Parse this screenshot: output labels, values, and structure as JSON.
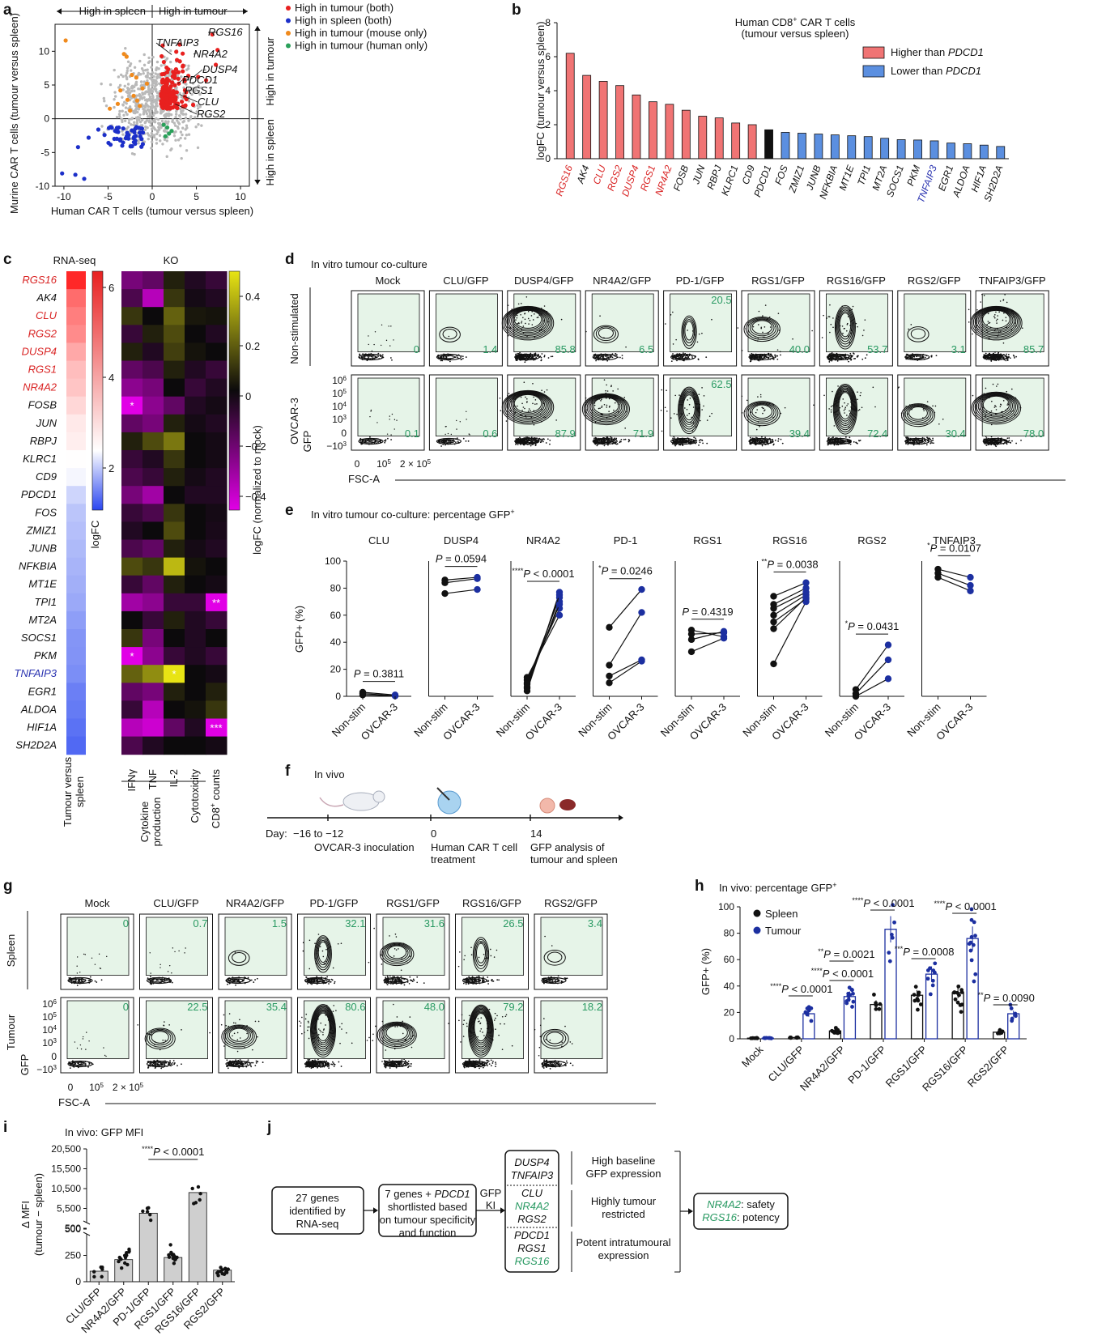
{
  "panel_letters": [
    "a",
    "b",
    "c",
    "d",
    "e",
    "f",
    "g",
    "h",
    "i",
    "j"
  ],
  "chart_data": [
    {
      "panel": "a",
      "type": "scatter",
      "xlabel": "Human CAR T cells (tumour versus spleen)",
      "ylabel": "Murine CAR T cells (tumour versus spleen)",
      "xlim": [
        -11,
        11
      ],
      "ylim": [
        -10,
        14
      ],
      "xticks": [
        "-10",
        "-5",
        "0",
        "5",
        "10"
      ],
      "yticks": [
        "-10",
        "-5",
        "0",
        "5",
        "10"
      ],
      "top_left": "High in spleen",
      "top_right": "High in tumour",
      "right_top": "High in tumour",
      "right_bottom": "High in spleen",
      "legend": [
        {
          "label": "High in tumour (both)",
          "color": "#e8201f"
        },
        {
          "label": "High in spleen (both)",
          "color": "#1c2fc9"
        },
        {
          "label": "High in tumour (mouse only)",
          "color": "#f08a1c"
        },
        {
          "label": "High in tumour (human only)",
          "color": "#2aa05a"
        }
      ],
      "annotations": [
        "RGS16",
        "TNFAIP3",
        "NR4A2",
        "DUSP4",
        "PDCD1",
        "RGS1",
        "CLU",
        "RGS2"
      ]
    },
    {
      "panel": "b",
      "type": "bar",
      "title": "Human CD8+ CAR T cells",
      "title_parts": {
        "pre": "Human CD8",
        "sup": "+",
        "post": " CAR T cells"
      },
      "subtitle": "(tumour versus spleen)",
      "ylabel": "logFC (tumour versus spleen)",
      "ylim": [
        0,
        8
      ],
      "yticks": [
        "0",
        "2",
        "4",
        "6",
        "8"
      ],
      "legend": [
        {
          "label_pre": "Higher than ",
          "label_italic": "PDCD1",
          "color": "#f07474"
        },
        {
          "label_pre": "Lower than ",
          "label_italic": "PDCD1",
          "color": "#5b8fe0"
        }
      ],
      "categories": [
        "RGS16",
        "AK4",
        "CLU",
        "RGS2",
        "DUSP4",
        "RGS1",
        "NR4A2",
        "FOSB",
        "JUN",
        "RBPJ",
        "KLRC1",
        "CD9",
        "PDCD1",
        "FOS",
        "ZMIZ1",
        "JUNB",
        "NFKBIA",
        "MT1E",
        "TPI1",
        "MT2A",
        "SOCS1",
        "PKM",
        "TNFAIP3",
        "EGR1",
        "ALDOA",
        "HIF1A",
        "SH2D2A"
      ],
      "values": [
        6.2,
        4.9,
        4.55,
        4.3,
        3.75,
        3.35,
        3.2,
        2.85,
        2.5,
        2.4,
        2.1,
        2.0,
        1.7,
        1.55,
        1.5,
        1.45,
        1.4,
        1.35,
        1.3,
        1.2,
        1.12,
        1.1,
        1.05,
        0.92,
        0.88,
        0.8,
        0.72
      ],
      "label_colors": [
        "red",
        "black",
        "red",
        "red",
        "red",
        "red",
        "red",
        "black",
        "black",
        "black",
        "black",
        "black",
        "black",
        "black",
        "black",
        "black",
        "black",
        "black",
        "black",
        "black",
        "black",
        "black",
        "blue",
        "black",
        "black",
        "black",
        "black"
      ]
    },
    {
      "panel": "c",
      "type": "heatmap",
      "left_title": "RNA-seq",
      "right_title": "KO",
      "genes": [
        "RGS16",
        "AK4",
        "CLU",
        "RGS2",
        "DUSP4",
        "RGS1",
        "NR4A2",
        "FOSB",
        "JUN",
        "RBPJ",
        "KLRC1",
        "CD9",
        "PDCD1",
        "FOS",
        "ZMIZ1",
        "JUNB",
        "NFKBIA",
        "MT1E",
        "TPI1",
        "MT2A",
        "SOCS1",
        "PKM",
        "TNFAIP3",
        "EGR1",
        "ALDOA",
        "HIF1A",
        "SH2D2A"
      ],
      "gene_colors": [
        "red",
        "black",
        "red",
        "red",
        "red",
        "red",
        "red",
        "black",
        "black",
        "black",
        "black",
        "black",
        "black",
        "black",
        "black",
        "black",
        "black",
        "black",
        "black",
        "black",
        "black",
        "black",
        "blue",
        "black",
        "black",
        "black",
        "black"
      ],
      "logfc": [
        6.2,
        4.9,
        4.55,
        4.3,
        3.75,
        3.35,
        3.2,
        2.85,
        2.5,
        2.4,
        2.1,
        2.0,
        1.7,
        1.55,
        1.5,
        1.45,
        1.4,
        1.35,
        1.3,
        1.2,
        1.12,
        1.1,
        1.05,
        0.92,
        0.88,
        0.8,
        0.72
      ],
      "logfc_ticks": [
        "6",
        "4",
        "2"
      ],
      "logfc_label": "logFC",
      "ko_ticks": [
        "0.4",
        "0.2",
        "0",
        "−0.2",
        "−0.4"
      ],
      "ko_label": "logFC (normalized to mock)",
      "ko_columns": [
        "IFNγ",
        "TNF",
        "IL-2",
        "Cytotoxicity",
        "CD8+ counts"
      ],
      "ko_column_parts": [
        {
          "pre": "IFNγ",
          "sup": ""
        },
        {
          "pre": "TNF",
          "sup": ""
        },
        {
          "pre": "IL-2",
          "sup": ""
        },
        {
          "pre": "Cytotoxicity",
          "sup": ""
        },
        {
          "pre": "CD8",
          "sup": "+",
          "post": " counts"
        }
      ],
      "column_groups": [
        "Cytokine production"
      ],
      "group_lines": [
        "Cytokine",
        "production"
      ],
      "x_left_label": "Tumour versus spleen",
      "x_left_lines": [
        "Tumour versus",
        "spleen"
      ],
      "ko_values": [
        [
          -0.25,
          -0.2,
          0.05,
          -0.05,
          -0.1
        ],
        [
          -0.15,
          -0.4,
          0.1,
          -0.02,
          -0.05
        ],
        [
          0.1,
          0.0,
          0.2,
          0.03,
          0.02
        ],
        [
          -0.1,
          0.05,
          0.15,
          0.0,
          -0.05
        ],
        [
          0.05,
          -0.05,
          0.12,
          0.02,
          0.0
        ],
        [
          -0.2,
          -0.15,
          0.05,
          -0.05,
          -0.1
        ],
        [
          -0.3,
          -0.25,
          0.0,
          -0.1,
          -0.05
        ],
        [
          -0.55,
          -0.3,
          -0.2,
          -0.05,
          -0.02
        ],
        [
          -0.2,
          -0.25,
          0.05,
          -0.02,
          -0.05
        ],
        [
          0.05,
          0.15,
          0.25,
          0.0,
          -0.02
        ],
        [
          -0.1,
          -0.05,
          0.1,
          0.0,
          -0.02
        ],
        [
          -0.15,
          -0.1,
          0.05,
          -0.02,
          -0.05
        ],
        [
          -0.25,
          -0.35,
          0.0,
          -0.05,
          -0.05
        ],
        [
          -0.1,
          -0.15,
          0.1,
          0.0,
          -0.02
        ],
        [
          -0.05,
          0.0,
          0.15,
          0.0,
          -0.03
        ],
        [
          -0.15,
          -0.2,
          0.05,
          -0.02,
          -0.05
        ],
        [
          0.15,
          0.1,
          0.4,
          0.02,
          0.0
        ],
        [
          -0.1,
          -0.2,
          0.05,
          0.0,
          -0.02
        ],
        [
          -0.35,
          -0.3,
          -0.1,
          -0.1,
          -0.5
        ],
        [
          0.0,
          -0.1,
          0.05,
          -0.05,
          -0.1
        ],
        [
          0.1,
          -0.25,
          0.0,
          -0.05,
          0.0
        ],
        [
          -0.55,
          -0.3,
          -0.1,
          -0.05,
          -0.1
        ],
        [
          0.2,
          0.3,
          0.5,
          0.0,
          -0.02
        ],
        [
          -0.2,
          -0.25,
          0.05,
          0.0,
          0.05
        ],
        [
          -0.1,
          -0.4,
          0.0,
          0.02,
          0.1
        ],
        [
          -0.4,
          -0.45,
          -0.2,
          -0.05,
          -0.5
        ],
        [
          -0.15,
          -0.05,
          0.0,
          0.0,
          -0.02
        ]
      ],
      "significance": [
        {
          "row": 7,
          "col": 0,
          "text": "*"
        },
        {
          "row": 18,
          "col": 4,
          "text": "**"
        },
        {
          "row": 21,
          "col": 0,
          "text": "*"
        },
        {
          "row": 22,
          "col": 2,
          "text": "*"
        },
        {
          "row": 25,
          "col": 4,
          "text": "***"
        }
      ]
    },
    {
      "panel": "d",
      "type": "flow",
      "title": "In vitro tumour co-culture",
      "columns": [
        "Mock",
        "CLU/GFP",
        "DUSP4/GFP",
        "NR4A2/GFP",
        "PD-1/GFP",
        "RGS1/GFP",
        "RGS16/GFP",
        "RGS2/GFP",
        "TNFAIP3/GFP"
      ],
      "rows": [
        "Non-stimulated",
        "OVCAR-3"
      ],
      "values": [
        [
          "0",
          "1.4",
          "85.8",
          "6.5",
          "20.5",
          "40.0",
          "53.7",
          "3.1",
          "85.7"
        ],
        [
          "0.1",
          "0.6",
          "87.9",
          "71.9",
          "62.5",
          "39.4",
          "72.4",
          "30.4",
          "78.0"
        ]
      ],
      "ylabel": "GFP",
      "xlabel": "FSC-A",
      "yticks": [
        {
          "b": "10",
          "e": "6"
        },
        {
          "b": "10",
          "e": "5"
        },
        {
          "b": "10",
          "e": "4"
        },
        {
          "b": "10",
          "e": "3"
        },
        {
          "b": "0",
          "e": ""
        },
        {
          "b": "−10",
          "e": "3"
        }
      ],
      "xticks": [
        "0",
        "10",
        "2 × 10"
      ],
      "xtick_exp": [
        "",
        "5",
        "5"
      ]
    },
    {
      "panel": "e",
      "type": "line",
      "title": "In vitro tumour co-culture: percentage GFP+",
      "title_parts": {
        "pre": "In vitro tumour co-culture: percentage GFP",
        "sup": "+"
      },
      "ylabel": "GFP+ (%)",
      "ylim": [
        0,
        100
      ],
      "yticks": [
        "0",
        "20",
        "40",
        "60",
        "80",
        "100"
      ],
      "categories": [
        "Non-stim",
        "OVCAR-3"
      ],
      "panels": [
        {
          "name": "CLU",
          "p": "P = 0.3811",
          "stars": "",
          "pairs": [
            [
              2,
              0.5
            ],
            [
              3,
              1
            ],
            [
              1,
              0.3
            ]
          ]
        },
        {
          "name": "DUSP4",
          "p": "P = 0.0594",
          "stars": "",
          "pairs": [
            [
              86,
              88
            ],
            [
              76,
              79
            ],
            [
              84,
              87
            ]
          ]
        },
        {
          "name": "NR4A2",
          "p": "P < 0.0001",
          "stars": "****",
          "pairs": [
            [
              4,
              77
            ],
            [
              7,
              70
            ],
            [
              10,
              73
            ],
            [
              12,
              65
            ],
            [
              14,
              60
            ],
            [
              6,
              75
            ],
            [
              9,
              68
            ]
          ]
        },
        {
          "name": "PD-1",
          "p": "P = 0.0246",
          "stars": "*",
          "pairs": [
            [
              51,
              79
            ],
            [
              23,
              62
            ],
            [
              15,
              27
            ],
            [
              10,
              26
            ]
          ]
        },
        {
          "name": "RGS1",
          "p": "P = 0.4319",
          "stars": "",
          "pairs": [
            [
              46,
              47
            ],
            [
              49,
              44
            ],
            [
              42,
              48
            ],
            [
              33,
              43
            ]
          ]
        },
        {
          "name": "RGS16",
          "p": "P = 0.0038",
          "stars": "**",
          "pairs": [
            [
              74,
              84
            ],
            [
              68,
              80
            ],
            [
              60,
              75
            ],
            [
              55,
              72
            ],
            [
              24,
              70
            ],
            [
              65,
              77
            ],
            [
              50,
              73
            ]
          ]
        },
        {
          "name": "RGS2",
          "p": "P = 0.0431",
          "stars": "*",
          "pairs": [
            [
              5,
              38
            ],
            [
              2,
              27
            ],
            [
              0,
              13
            ]
          ]
        },
        {
          "name": "TNFAIP3",
          "p": "P = 0.0107",
          "stars": "*",
          "pairs": [
            [
              94,
              88
            ],
            [
              91,
              82
            ],
            [
              88,
              78
            ]
          ]
        }
      ]
    },
    {
      "panel": "f",
      "type": "timeline",
      "title": "In vivo",
      "day_label": "Day:",
      "steps": [
        {
          "day": "−16 to −12",
          "label": [
            "OVCAR-3 inoculation"
          ]
        },
        {
          "day": "0",
          "label": [
            "Human CAR T cell",
            "treatment"
          ]
        },
        {
          "day": "14",
          "label": [
            "GFP analysis of",
            "tumour and spleen"
          ]
        }
      ]
    },
    {
      "panel": "g",
      "type": "flow",
      "columns": [
        "Mock",
        "CLU/GFP",
        "NR4A2/GFP",
        "PD-1/GFP",
        "RGS1/GFP",
        "RGS16/GFP",
        "RGS2/GFP"
      ],
      "rows": [
        "Spleen",
        "Tumour"
      ],
      "values": [
        [
          "0",
          "0.7",
          "1.5",
          "32.1",
          "31.6",
          "26.5",
          "3.4"
        ],
        [
          "0",
          "22.5",
          "35.4",
          "80.6",
          "48.0",
          "79.2",
          "18.2"
        ]
      ],
      "ylabel": "GFP",
      "xlabel": "FSC-A"
    },
    {
      "panel": "h",
      "type": "bar",
      "title": "In vivo: percentage GFP+",
      "title_parts": {
        "pre": "In vivo: percentage GFP",
        "sup": "+"
      },
      "ylabel": "GFP+ (%)",
      "ylim": [
        0,
        100
      ],
      "yticks": [
        "0",
        "20",
        "40",
        "60",
        "80",
        "100"
      ],
      "categories": [
        "Mock",
        "CLU/GFP",
        "NR4A2/GFP",
        "PD-1/GFP",
        "RGS1/GFP",
        "RGS16/GFP",
        "RGS2/GFP"
      ],
      "series": [
        {
          "name": "Spleen",
          "values": [
            0.5,
            1,
            6,
            26,
            33,
            35,
            5
          ],
          "color": "#111"
        },
        {
          "name": "Tumour",
          "values": [
            0.5,
            19,
            32,
            83,
            49,
            76,
            19
          ],
          "color": "#1c2fa0"
        }
      ],
      "comparisons": [
        {
          "cat": 1,
          "text": "P < 0.0001",
          "stars": "****"
        },
        {
          "cat": 2,
          "text": "P < 0.0001",
          "stars": "****"
        },
        {
          "cat": 2,
          "text": "P = 0.0021",
          "stars": "**",
          "wide": true
        },
        {
          "cat": 3,
          "text": "P < 0.0001",
          "stars": "****"
        },
        {
          "cat": 4,
          "text": "P = 0.0008",
          "stars": "***"
        },
        {
          "cat": 5,
          "text": "P < 0.0001",
          "stars": "****"
        },
        {
          "cat": 6,
          "text": "P = 0.0090",
          "stars": "**"
        }
      ]
    },
    {
      "panel": "i",
      "type": "bar",
      "title": "In vivo: GFP MFI",
      "ylabel": "Δ MFI",
      "ylabel2": "(tumour − spleen)",
      "yticks_top": [
        "500",
        "5,500",
        "10,500",
        "15,500",
        "20,500"
      ],
      "yticks_bottom": [
        "0",
        "250",
        "500"
      ],
      "categories": [
        "CLU/GFP",
        "NR4A2/GFP",
        "PD-1/GFP",
        "RGS1/GFP",
        "RGS16/GFP",
        "RGS2/GFP"
      ],
      "values": [
        100,
        210,
        4300,
        230,
        9500,
        110
      ],
      "comparison": {
        "text": "P < 0.0001",
        "stars": "****"
      }
    },
    {
      "panel": "j",
      "type": "diagram",
      "box1": [
        "27 genes",
        "identified by",
        "RNA-seq"
      ],
      "box2_first": "7 genes + ",
      "box2_italic": "PDCD1",
      "box2": [
        "shortlisted based",
        "on tumour specificity",
        "and function"
      ],
      "ki": [
        "GFP",
        "KI"
      ],
      "groups": [
        {
          "genes": [
            {
              "t": "DUSP4",
              "c": "black"
            },
            {
              "t": "TNFAIP3",
              "c": "black"
            }
          ],
          "desc": [
            "High baseline",
            "GFP expression"
          ]
        },
        {
          "genes": [
            {
              "t": "CLU",
              "c": "black"
            },
            {
              "t": "NR4A2",
              "c": "green"
            },
            {
              "t": "RGS2",
              "c": "black"
            }
          ],
          "desc": [
            "Highly tumour",
            "restricted"
          ]
        },
        {
          "genes": [
            {
              "t": "PDCD1",
              "c": "black"
            },
            {
              "t": "RGS1",
              "c": "black"
            },
            {
              "t": "RGS16",
              "c": "green"
            }
          ],
          "desc": [
            "Potent intratumoural",
            "expression"
          ]
        }
      ],
      "final": [
        {
          "g": "NR4A2",
          "t": ": safety"
        },
        {
          "g": "RGS16",
          "t": ": potency"
        }
      ]
    }
  ]
}
